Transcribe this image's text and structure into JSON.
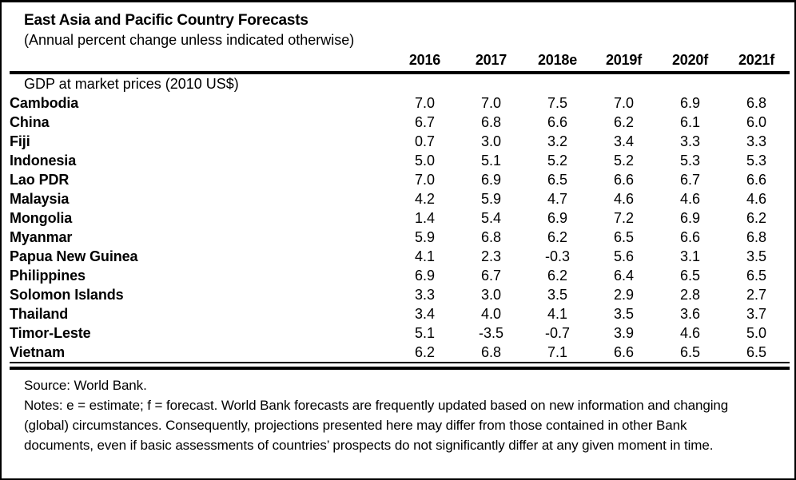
{
  "table": {
    "title": "East Asia and Pacific Country Forecasts",
    "subtitle": "(Annual percent change unless indicated otherwise)",
    "columns": [
      "2016",
      "2017",
      "2018e",
      "2019f",
      "2020f",
      "2021f"
    ],
    "section_header": "GDP at market prices (2010 US$)",
    "rows": [
      {
        "country": "Cambodia",
        "values": [
          "7.0",
          "7.0",
          "7.5",
          "7.0",
          "6.9",
          "6.8"
        ]
      },
      {
        "country": "China",
        "values": [
          "6.7",
          "6.8",
          "6.6",
          "6.2",
          "6.1",
          "6.0"
        ]
      },
      {
        "country": "Fiji",
        "values": [
          "0.7",
          "3.0",
          "3.2",
          "3.4",
          "3.3",
          "3.3"
        ]
      },
      {
        "country": "Indonesia",
        "values": [
          "5.0",
          "5.1",
          "5.2",
          "5.2",
          "5.3",
          "5.3"
        ]
      },
      {
        "country": "Lao PDR",
        "values": [
          "7.0",
          "6.9",
          "6.5",
          "6.6",
          "6.7",
          "6.6"
        ]
      },
      {
        "country": "Malaysia",
        "values": [
          "4.2",
          "5.9",
          "4.7",
          "4.6",
          "4.6",
          "4.6"
        ]
      },
      {
        "country": "Mongolia",
        "values": [
          "1.4",
          "5.4",
          "6.9",
          "7.2",
          "6.9",
          "6.2"
        ]
      },
      {
        "country": "Myanmar",
        "values": [
          "5.9",
          "6.8",
          "6.2",
          "6.5",
          "6.6",
          "6.8"
        ]
      },
      {
        "country": "Papua New Guinea",
        "values": [
          "4.1",
          "2.3",
          "-0.3",
          "5.6",
          "3.1",
          "3.5"
        ]
      },
      {
        "country": "Philippines",
        "values": [
          "6.9",
          "6.7",
          "6.2",
          "6.4",
          "6.5",
          "6.5"
        ]
      },
      {
        "country": "Solomon Islands",
        "values": [
          "3.3",
          "3.0",
          "3.5",
          "2.9",
          "2.8",
          "2.7"
        ]
      },
      {
        "country": "Thailand",
        "values": [
          "3.4",
          "4.0",
          "4.1",
          "3.5",
          "3.6",
          "3.7"
        ]
      },
      {
        "country": "Timor-Leste",
        "values": [
          "5.1",
          "-3.5",
          "-0.7",
          "3.9",
          "4.6",
          "5.0"
        ]
      },
      {
        "country": "Vietnam",
        "values": [
          "6.2",
          "6.8",
          "7.1",
          "6.6",
          "6.5",
          "6.5"
        ]
      }
    ],
    "source": "Source: World Bank.",
    "notes": "Notes: e = estimate; f = forecast.  World Bank forecasts are frequently updated based on new information and changing (global) circumstances. Consequently, projections presented here may differ from those contained in other Bank documents, even if basic assessments of countries’ prospects do not significantly differ at any given moment in time."
  },
  "colors": {
    "text": "#000000",
    "rule": "#000000",
    "background": "#ffffff"
  },
  "chart_data": {
    "type": "table",
    "title": "East Asia and Pacific Country Forecasts",
    "subtitle": "(Annual percent change unless indicated otherwise)",
    "section": "GDP at market prices (2010 US$)",
    "categories": [
      "2016",
      "2017",
      "2018e",
      "2019f",
      "2020f",
      "2021f"
    ],
    "series": [
      {
        "name": "Cambodia",
        "values": [
          7.0,
          7.0,
          7.5,
          7.0,
          6.9,
          6.8
        ]
      },
      {
        "name": "China",
        "values": [
          6.7,
          6.8,
          6.6,
          6.2,
          6.1,
          6.0
        ]
      },
      {
        "name": "Fiji",
        "values": [
          0.7,
          3.0,
          3.2,
          3.4,
          3.3,
          3.3
        ]
      },
      {
        "name": "Indonesia",
        "values": [
          5.0,
          5.1,
          5.2,
          5.2,
          5.3,
          5.3
        ]
      },
      {
        "name": "Lao PDR",
        "values": [
          7.0,
          6.9,
          6.5,
          6.6,
          6.7,
          6.6
        ]
      },
      {
        "name": "Malaysia",
        "values": [
          4.2,
          5.9,
          4.7,
          4.6,
          4.6,
          4.6
        ]
      },
      {
        "name": "Mongolia",
        "values": [
          1.4,
          5.4,
          6.9,
          7.2,
          6.9,
          6.2
        ]
      },
      {
        "name": "Myanmar",
        "values": [
          5.9,
          6.8,
          6.2,
          6.5,
          6.6,
          6.8
        ]
      },
      {
        "name": "Papua New Guinea",
        "values": [
          4.1,
          2.3,
          -0.3,
          5.6,
          3.1,
          3.5
        ]
      },
      {
        "name": "Philippines",
        "values": [
          6.9,
          6.7,
          6.2,
          6.4,
          6.5,
          6.5
        ]
      },
      {
        "name": "Solomon Islands",
        "values": [
          3.3,
          3.0,
          3.5,
          2.9,
          2.8,
          2.7
        ]
      },
      {
        "name": "Thailand",
        "values": [
          3.4,
          4.0,
          4.1,
          3.5,
          3.6,
          3.7
        ]
      },
      {
        "name": "Timor-Leste",
        "values": [
          5.1,
          -3.5,
          -0.7,
          3.9,
          4.6,
          5.0
        ]
      },
      {
        "name": "Vietnam",
        "values": [
          6.2,
          6.8,
          7.1,
          6.6,
          6.5,
          6.5
        ]
      }
    ],
    "source": "World Bank",
    "notes": "e = estimate; f = forecast"
  }
}
